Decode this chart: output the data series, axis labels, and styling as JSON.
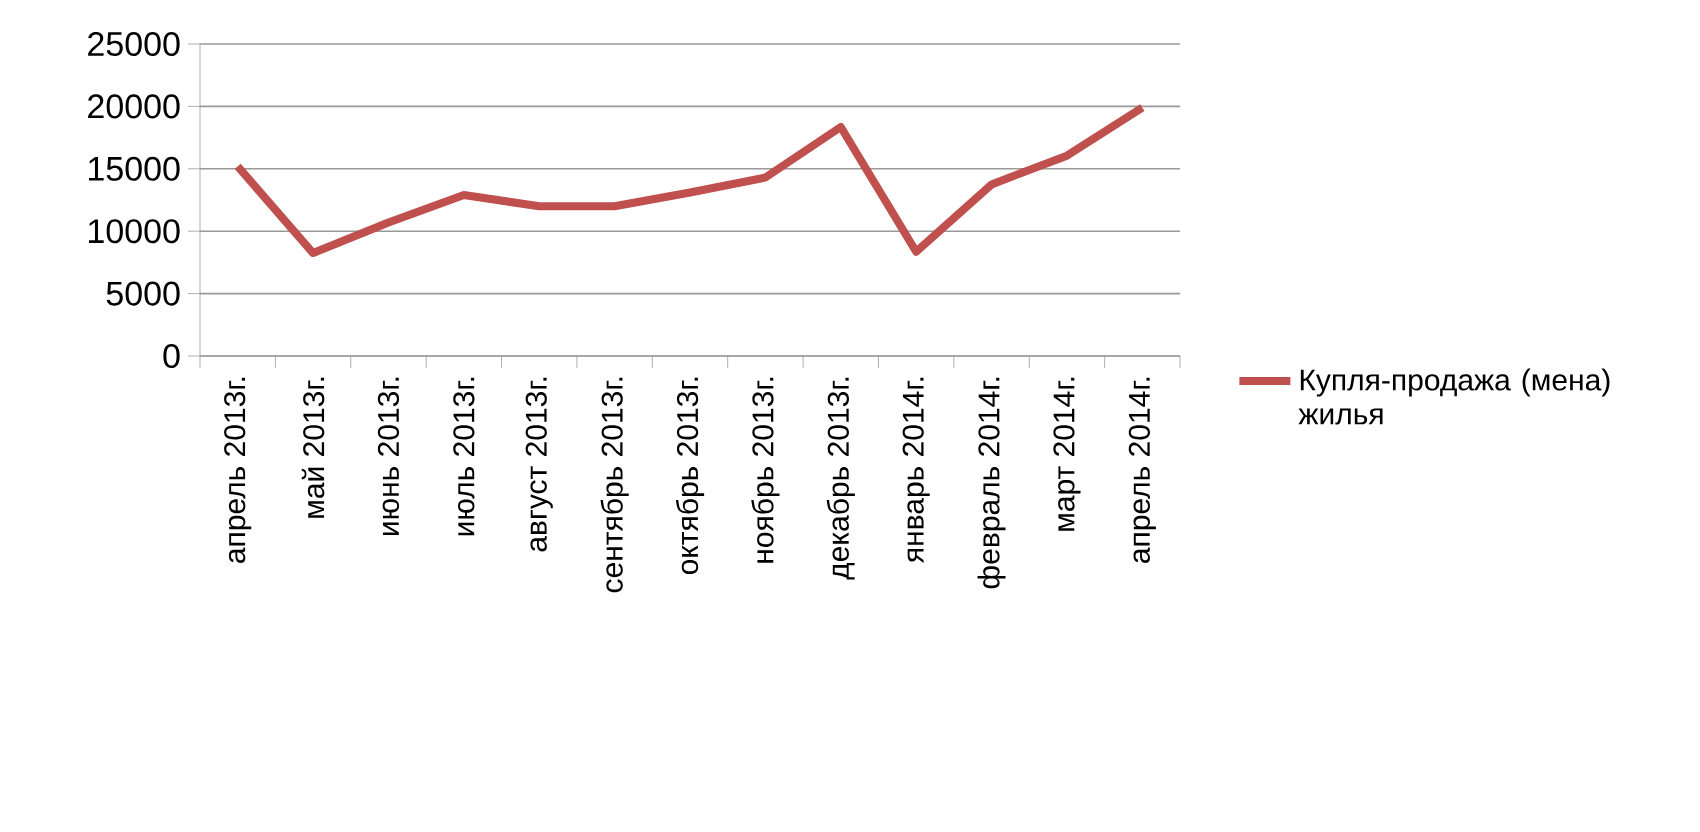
{
  "chart_data": {
    "type": "line",
    "categories": [
      "апрель 2013г.",
      "май 2013г.",
      "июнь 2013г.",
      "июль 2013г.",
      "август 2013г.",
      "сентябрь 2013г.",
      "октябрь 2013г.",
      "ноябрь 2013г.",
      "декабрь 2013г.",
      "январь 2014г.",
      "февраль 2014г.",
      "март 2014г.",
      "апрель 2014г."
    ],
    "series": [
      {
        "name": "Купля-продажа (мена) жилья",
        "color": "#c0504d",
        "values": [
          15200,
          8250,
          10700,
          12900,
          12000,
          12000,
          13100,
          14300,
          18350,
          8350,
          13750,
          16050,
          19900
        ]
      }
    ],
    "ylim": [
      0,
      25000
    ],
    "yticks": [
      0,
      5000,
      10000,
      15000,
      20000,
      25000
    ],
    "grid": "y",
    "legend": "right",
    "marker": "none",
    "line_style": "solid"
  }
}
